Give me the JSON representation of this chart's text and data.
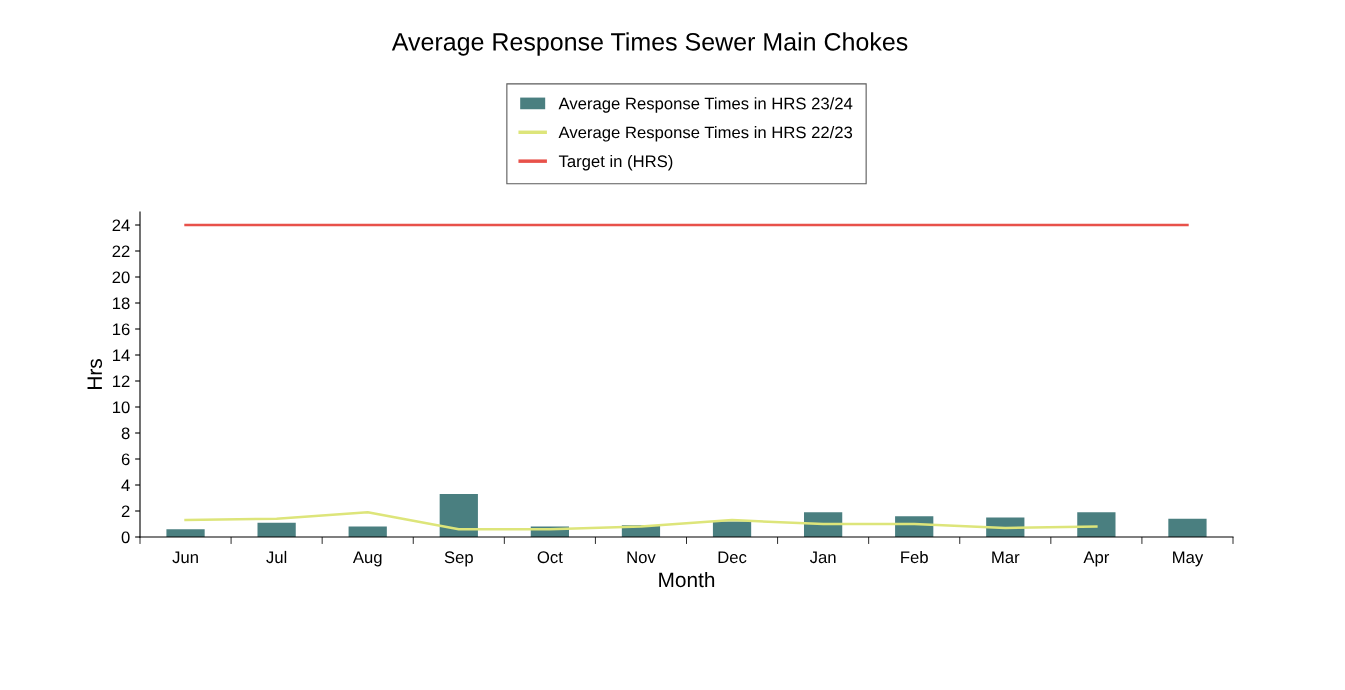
{
  "chart_data": {
    "type": "bar",
    "title": "Average Response Times Sewer Main Chokes",
    "xlabel": "Month",
    "ylabel": "Hrs",
    "categories": [
      "Jun",
      "Jul",
      "Aug",
      "Sep",
      "Oct",
      "Nov",
      "Dec",
      "Jan",
      "Feb",
      "Mar",
      "Apr",
      "May"
    ],
    "series": [
      {
        "name": "Average Response Times in HRS 23/24",
        "color": "#4a7f80",
        "values": [
          0.6,
          1.1,
          0.8,
          3.3,
          0.8,
          0.9,
          1.2,
          1.9,
          1.6,
          1.5,
          1.9,
          1.4
        ]
      },
      {
        "name": "Average Response Times in HRS 22/23",
        "type": "line",
        "color": "#dde57a",
        "values": [
          1.3,
          1.4,
          1.9,
          0.6,
          0.6,
          0.8,
          1.3,
          1.0,
          1.0,
          0.7,
          0.8,
          null
        ]
      },
      {
        "name": "Target in (HRS)",
        "type": "line",
        "color": "#e8514a",
        "values": [
          24,
          24,
          24,
          24,
          24,
          24,
          24,
          24,
          24,
          24,
          24,
          24
        ]
      }
    ],
    "ylim": [
      0,
      25
    ],
    "yticks": [
      0,
      2,
      4,
      6,
      8,
      10,
      12,
      14,
      16,
      18,
      20,
      22,
      24
    ],
    "grid": false,
    "legend": "top"
  }
}
